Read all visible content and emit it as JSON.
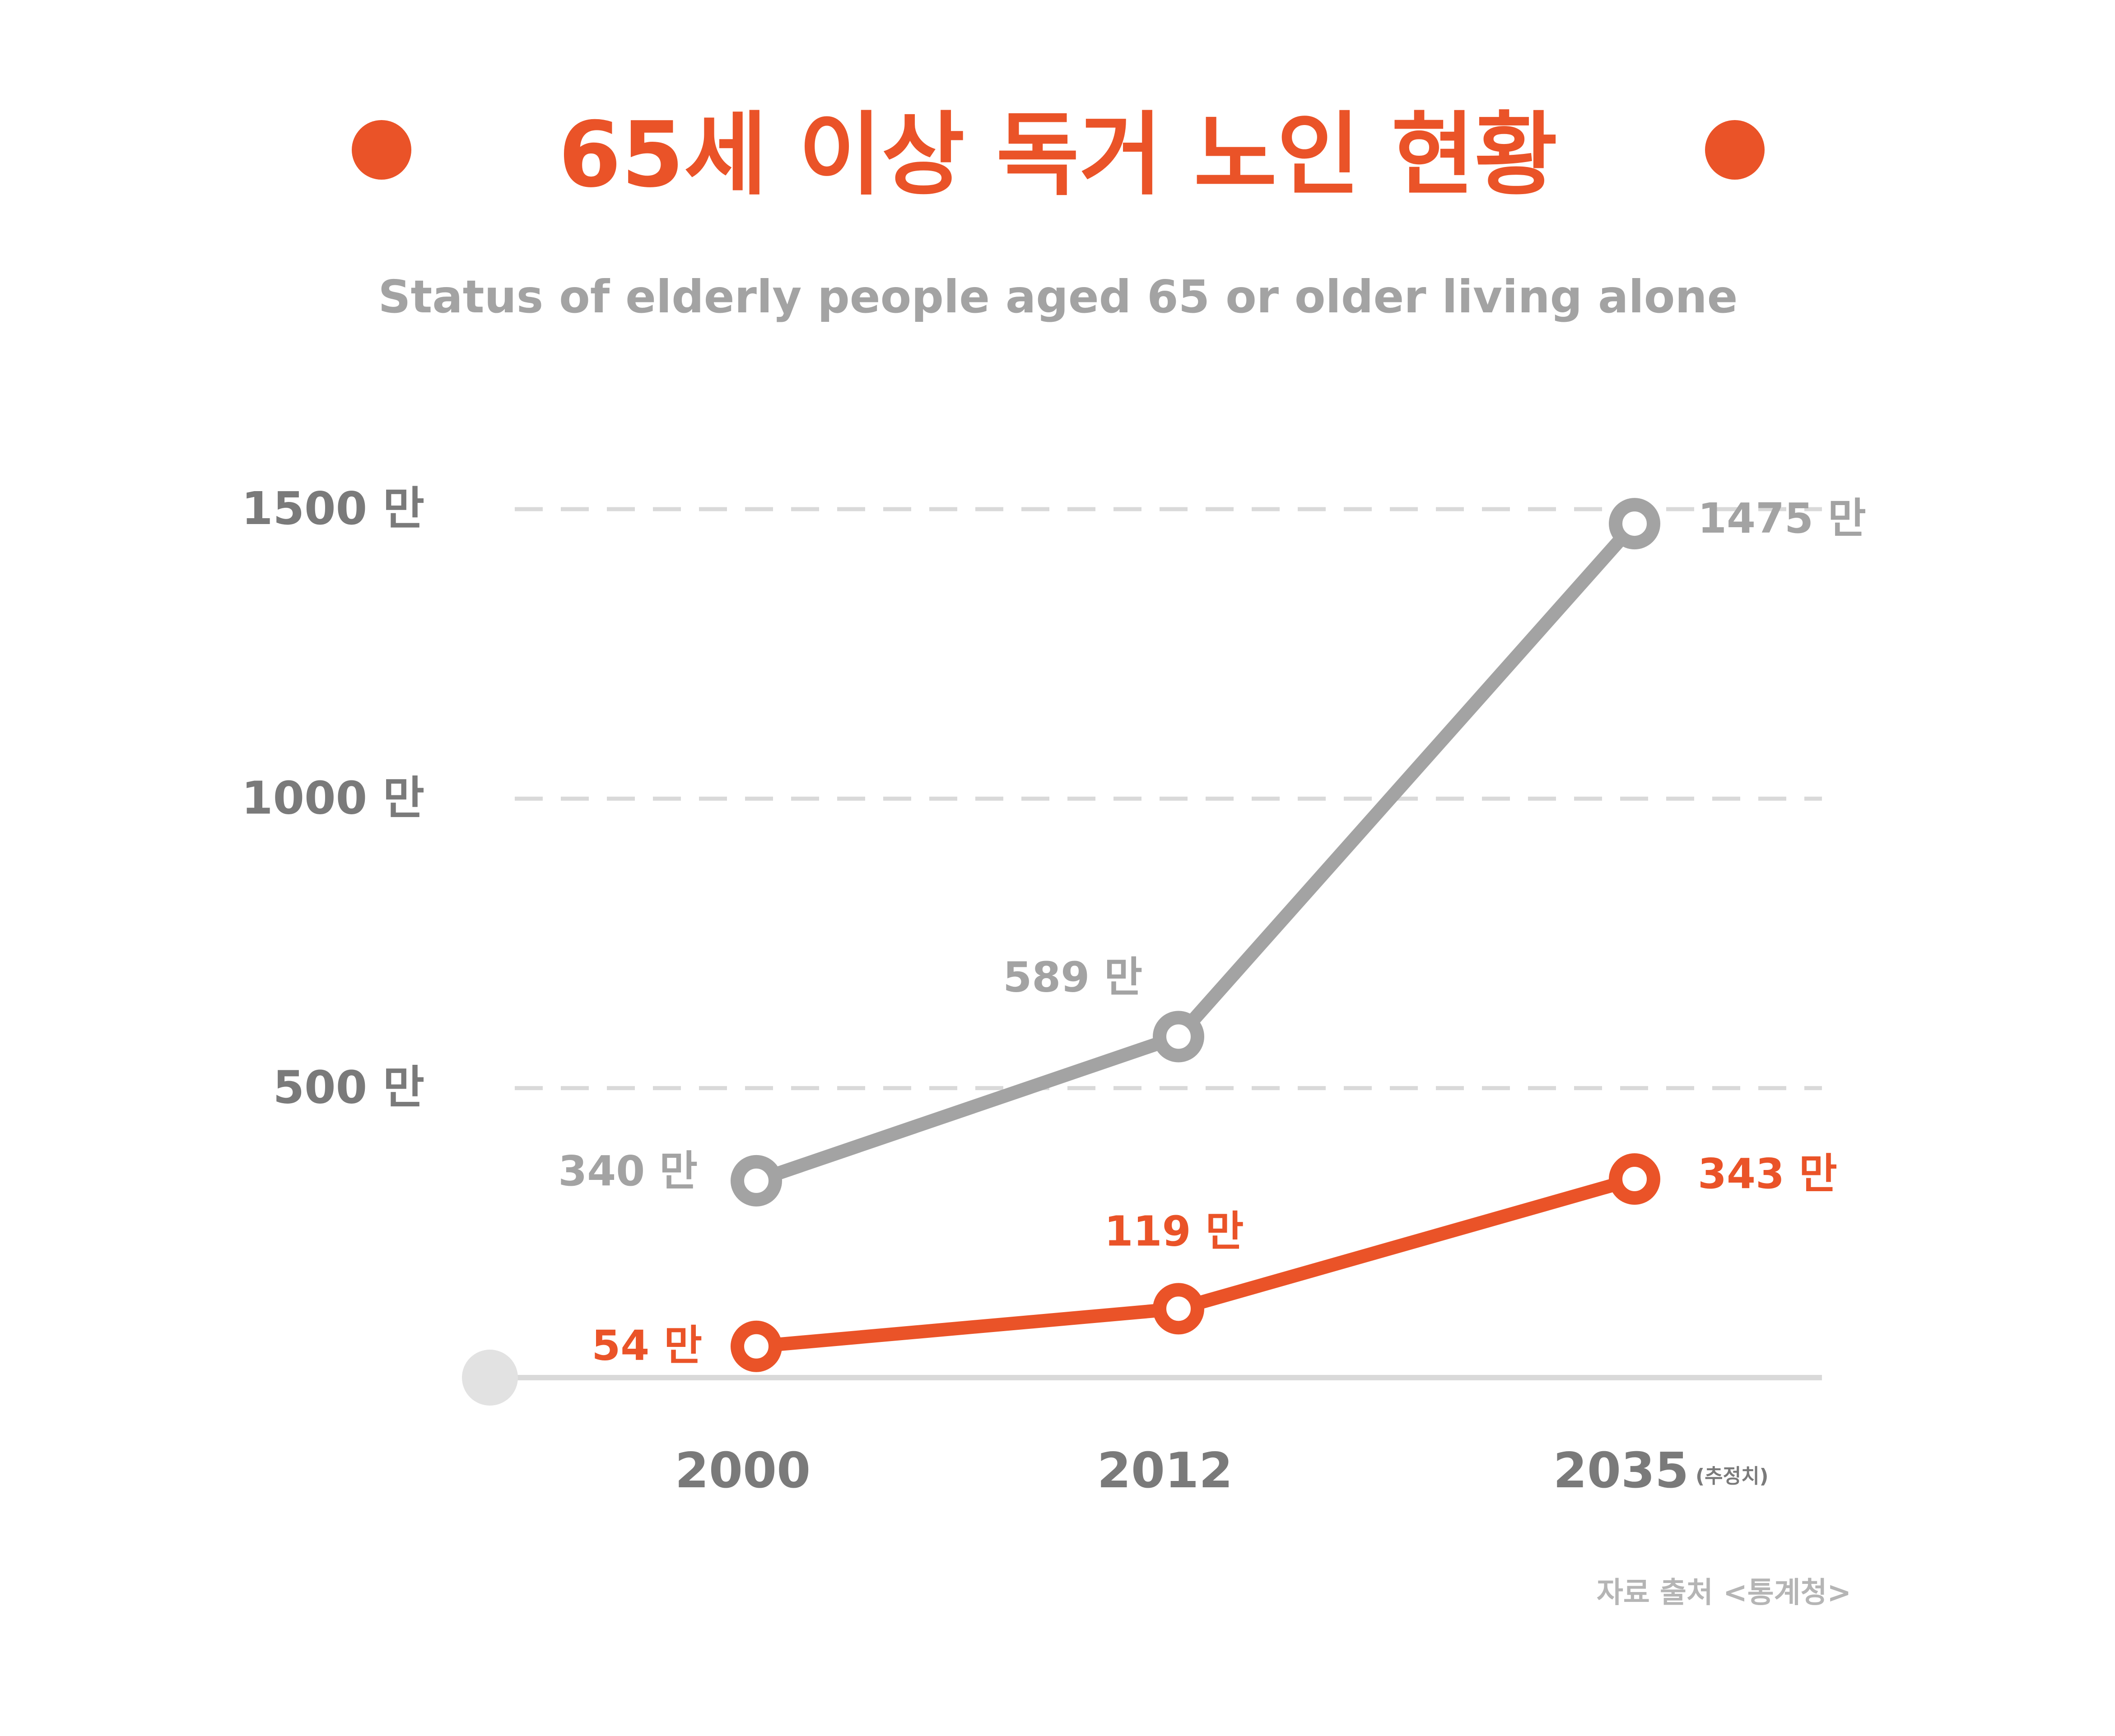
{
  "chart_data": {
    "type": "line",
    "title": "65세 이상 독거 노인 현황",
    "subtitle": "Status of elderly people aged 65 or older living alone",
    "categories": [
      "2000",
      "2012",
      "2035"
    ],
    "category_note": "(추정치)",
    "ylim": [
      0,
      1500
    ],
    "yticks": [
      500,
      1000,
      1500
    ],
    "ytick_labels": [
      "500 만",
      "1000 만",
      "1500 만"
    ],
    "grid": true,
    "series": [
      {
        "values": [
          340,
          589,
          1475
        ],
        "labels": [
          "340 만",
          "589 만",
          "1475 만"
        ],
        "color": "#a3a3a3"
      },
      {
        "values": [
          54,
          119,
          343
        ],
        "labels": [
          "54 만",
          "119 만",
          "343 만"
        ],
        "color": "#ea5328"
      }
    ],
    "source": "자료 출처 <통계청>"
  },
  "colors": {
    "accent": "#ea5328",
    "gray_series": "#a3a3a3",
    "axis_text": "#7a7a7a",
    "grid": "#d9d9d9",
    "baseline": "#d9d9d9",
    "source_text": "#b5b5b5"
  }
}
